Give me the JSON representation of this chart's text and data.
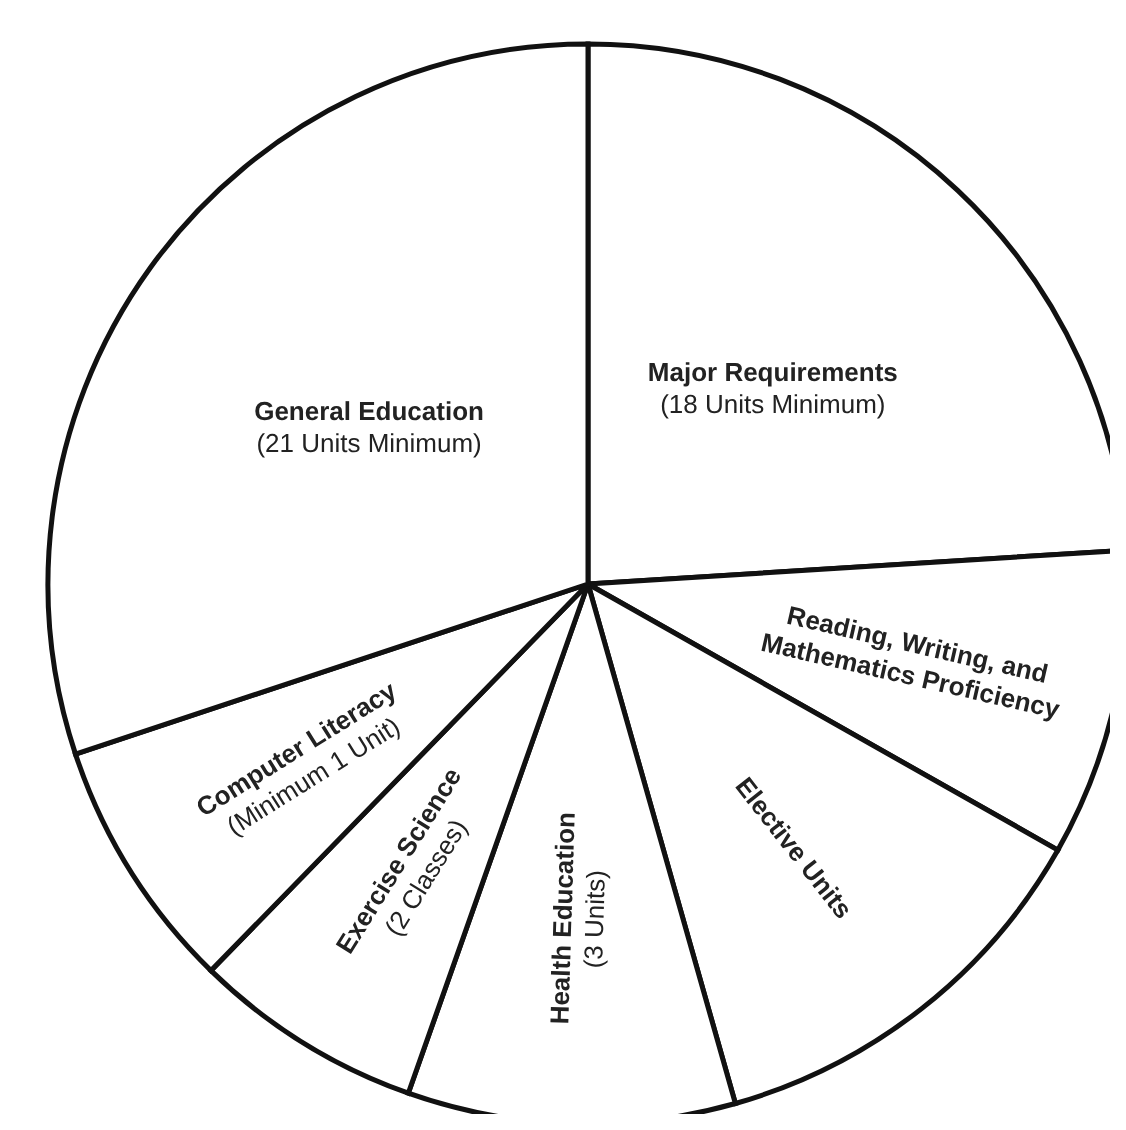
{
  "chart_data": {
    "type": "pie",
    "categories": [
      "Major Requirements\n(18 Units Minimum)",
      "Reading, Writing, and\nMathematics Proficiency",
      "Elective Units",
      "Health Education\n(3 Units)",
      "Exercise Science\n(2 Classes)",
      "Computer Literacy\n(Minimum 1 Unit)",
      "General Education\n(21 Units Minimum)"
    ],
    "values": [
      24.0,
      9.2,
      12.4,
      9.8,
      6.9,
      7.6,
      30.1
    ],
    "colors": [
      "#ffffff",
      "#ffffff",
      "#ffffff",
      "#ffffff",
      "#ffffff",
      "#ffffff",
      "#ffffff"
    ],
    "legend": false
  }
}
